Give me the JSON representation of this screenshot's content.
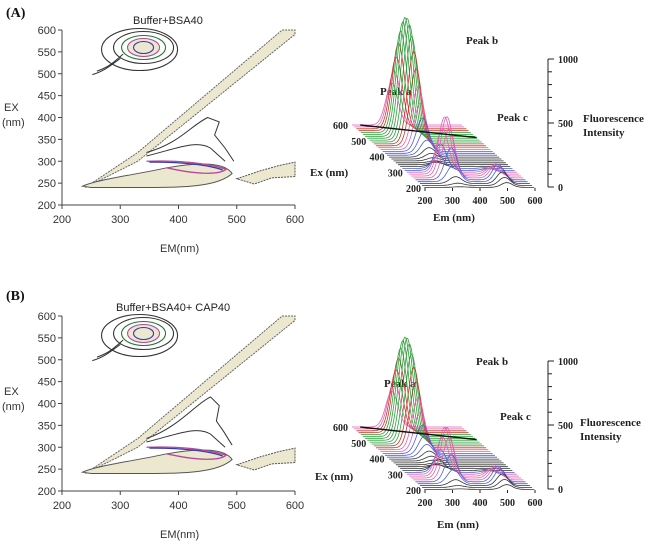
{
  "panels": [
    {
      "label": "(A)",
      "contour": {
        "title": "Buffer+BSA40",
        "xlabel": "EM(nm)",
        "ylabel_lines": [
          "EX",
          "(nm)"
        ]
      },
      "surface": {
        "peak_a": "Peak a",
        "peak_b": "Peak b",
        "peak_c": "Peak c",
        "zlabel_lines": [
          "Fluorescence",
          "Intensity"
        ],
        "ex_label": "Ex (nm)",
        "em_label": "Em (nm)"
      }
    },
    {
      "label": "(B)",
      "contour": {
        "title": "Buffer+BSA40+ CAP40",
        "xlabel": "EM(nm)",
        "ylabel_lines": [
          "EX",
          "(nm)"
        ]
      },
      "surface": {
        "peak_a": "Peak a",
        "peak_b": "Peak b",
        "peak_c": "Peak c",
        "zlabel_lines": [
          "Fluorescence",
          "Intensity"
        ],
        "ex_label": "Ex (nm)",
        "em_label": "Em (nm)"
      }
    }
  ],
  "chart_data": [
    {
      "type": "heatmap",
      "panel": "(A)",
      "title": "Buffer+BSA40",
      "xlabel": "EM(nm)",
      "ylabel": "EX (nm)",
      "xlim": [
        200,
        600
      ],
      "ylim": [
        200,
        600
      ],
      "xticks": [
        "200",
        "300",
        "400",
        "500",
        "600"
      ],
      "yticks": [
        "200",
        "250",
        "300",
        "350",
        "400",
        "450",
        "500",
        "550",
        "600"
      ],
      "peaks": [
        {
          "name": "Peak a",
          "em": 340,
          "ex": 280
        },
        {
          "name": "Peak b",
          "em": 340,
          "ex": 560
        }
      ]
    },
    {
      "type": "surface",
      "panel": "(A)",
      "xlabel": "Em (nm)",
      "ylabel": "Ex (nm)",
      "zlabel": "Fluorescence Intensity",
      "xticks": [
        "200",
        "300",
        "400",
        "500",
        "600"
      ],
      "yticks": [
        "200",
        "300",
        "400",
        "500",
        "600"
      ],
      "zticks": [
        "0",
        "500",
        "1000"
      ],
      "zlim": [
        0,
        1000
      ],
      "peaks": [
        {
          "name": "Peak a",
          "z": 470
        },
        {
          "name": "Peak b",
          "z": 940
        },
        {
          "name": "Peak c",
          "z": 120
        }
      ]
    },
    {
      "type": "heatmap",
      "panel": "(B)",
      "title": "Buffer+BSA40+ CAP40",
      "xlabel": "EM(nm)",
      "ylabel": "EX (nm)",
      "xlim": [
        200,
        600
      ],
      "ylim": [
        200,
        600
      ],
      "xticks": [
        "200",
        "300",
        "400",
        "500",
        "600"
      ],
      "yticks": [
        "200",
        "250",
        "300",
        "350",
        "400",
        "450",
        "500",
        "550",
        "600"
      ],
      "peaks": [
        {
          "name": "Peak a",
          "em": 340,
          "ex": 280
        },
        {
          "name": "Peak b",
          "em": 340,
          "ex": 560
        }
      ]
    },
    {
      "type": "surface",
      "panel": "(B)",
      "xlabel": "Em (nm)",
      "ylabel": "Ex (nm)",
      "zlabel": "Fluorescence Intensity",
      "xticks": [
        "200",
        "300",
        "400",
        "500",
        "600"
      ],
      "yticks": [
        "200",
        "300",
        "400",
        "500",
        "600"
      ],
      "zticks": [
        "0",
        "500",
        "1000"
      ],
      "zlim": [
        0,
        1000
      ],
      "peaks": [
        {
          "name": "Peak a",
          "z": 400
        },
        {
          "name": "Peak b",
          "z": 800
        },
        {
          "name": "Peak c",
          "z": 120
        }
      ]
    }
  ]
}
